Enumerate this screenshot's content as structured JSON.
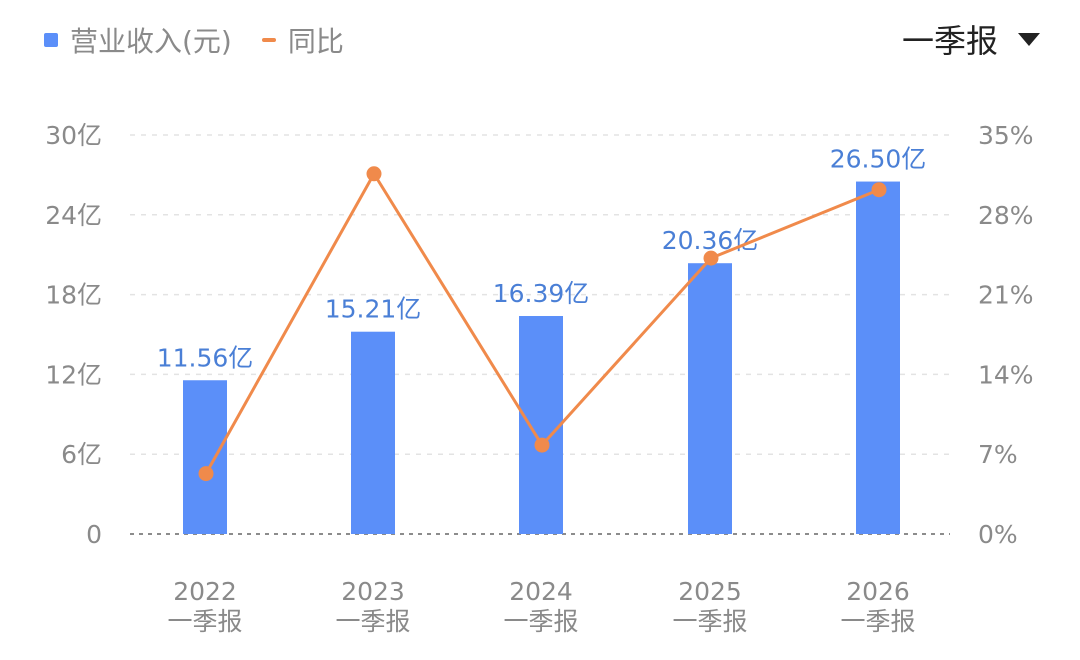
{
  "legend": {
    "bar_label": "营业收入(元)",
    "line_label": "同比"
  },
  "period_selector": {
    "label": "一季报"
  },
  "colors": {
    "bar": "#5b8ff9",
    "line": "#f08a4b",
    "value_label": "#4a7fd6",
    "axis_text": "#8a8a8a"
  },
  "chart_data": {
    "type": "bar",
    "categories": [
      [
        "2022",
        "一季报"
      ],
      [
        "2023",
        "一季报"
      ],
      [
        "2024",
        "一季报"
      ],
      [
        "2025",
        "一季报"
      ],
      [
        "2026",
        "一季报"
      ]
    ],
    "series": [
      {
        "name": "营业收入(元)",
        "type": "bar",
        "axis": "left",
        "values": [
          11.56,
          15.21,
          16.39,
          20.36,
          26.5
        ],
        "data_labels": [
          "11.56亿",
          "15.21亿",
          "16.39亿",
          "20.36亿",
          "26.50亿"
        ]
      },
      {
        "name": "同比",
        "type": "line",
        "axis": "right",
        "values": [
          5.3,
          31.6,
          7.8,
          24.2,
          30.2
        ]
      }
    ],
    "y_left": {
      "ticks": [
        "0",
        "6亿",
        "12亿",
        "18亿",
        "24亿",
        "30亿"
      ],
      "range": [
        0,
        30
      ]
    },
    "y_right": {
      "ticks": [
        "0%",
        "7%",
        "14%",
        "21%",
        "28%",
        "35%"
      ],
      "range": [
        0,
        35
      ]
    },
    "grid": true,
    "legend_position": "top-left"
  }
}
